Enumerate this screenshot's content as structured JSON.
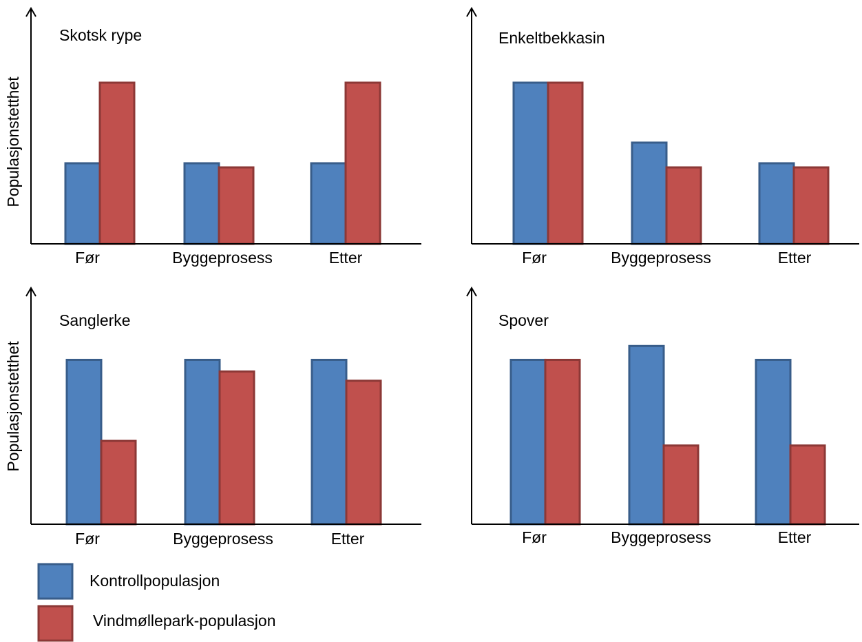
{
  "colors": {
    "control_fill": "#4F81BD",
    "control_stroke": "#385D8A",
    "windfarm_fill": "#C0504D",
    "windfarm_stroke": "#8C3836",
    "axis": "#000000"
  },
  "legend": {
    "control": "Kontrollpopulasjon",
    "windfarm": "Vindmøllepark-populasjon"
  },
  "chart_data": [
    {
      "type": "bar",
      "title": "Skotsk rype",
      "ylabel": "Populasjonstetthet",
      "categories": [
        "Før",
        "Byggeprosess",
        "Etter"
      ],
      "series": [
        {
          "name": "Kontrollpopulasjon",
          "values": [
            0.39,
            0.39,
            0.39
          ]
        },
        {
          "name": "Vindmøllepark-populasjon",
          "values": [
            0.78,
            0.37,
            0.78
          ]
        }
      ],
      "ylim": [
        0,
        1
      ],
      "grid": false,
      "axis_ticks": false,
      "legend_position": "bottom-left"
    },
    {
      "type": "bar",
      "title": "Enkeltbekkasin",
      "ylabel": "",
      "categories": [
        "Før",
        "Byggeprosess",
        "Etter"
      ],
      "series": [
        {
          "name": "Kontrollpopulasjon",
          "values": [
            0.78,
            0.49,
            0.39
          ]
        },
        {
          "name": "Vindmøllepark-populasjon",
          "values": [
            0.78,
            0.37,
            0.37
          ]
        }
      ],
      "ylim": [
        0,
        1
      ],
      "grid": false,
      "axis_ticks": false,
      "legend_position": "bottom-left"
    },
    {
      "type": "bar",
      "title": "Sanglerke",
      "ylabel": "Populasjonstetthet",
      "categories": [
        "Før",
        "Byggeprosess",
        "Etter"
      ],
      "series": [
        {
          "name": "Kontrollpopulasjon",
          "values": [
            0.71,
            0.71,
            0.71
          ]
        },
        {
          "name": "Vindmøllepark-populasjon",
          "values": [
            0.36,
            0.66,
            0.62
          ]
        }
      ],
      "ylim": [
        0,
        1
      ],
      "grid": false,
      "axis_ticks": false,
      "legend_position": "bottom-left"
    },
    {
      "type": "bar",
      "title": "Spover",
      "ylabel": "",
      "categories": [
        "Før",
        "Byggeprosess",
        "Etter"
      ],
      "series": [
        {
          "name": "Kontrollpopulasjon",
          "values": [
            0.71,
            0.77,
            0.71
          ]
        },
        {
          "name": "Vindmøllepark-populasjon",
          "values": [
            0.71,
            0.34,
            0.34
          ]
        }
      ],
      "ylim": [
        0,
        1
      ],
      "grid": false,
      "axis_ticks": false,
      "legend_position": "bottom-left"
    }
  ]
}
